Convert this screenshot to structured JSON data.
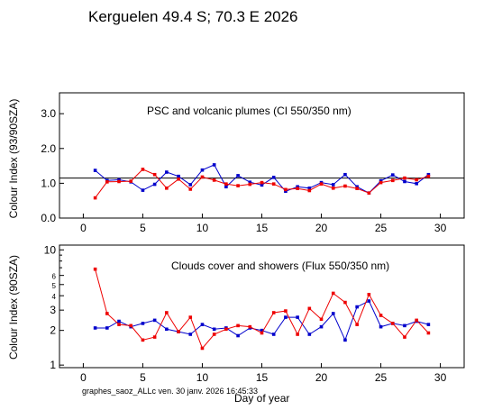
{
  "header": {
    "title": "Kerguelen  49.4 S; 70.3 E    2026"
  },
  "footer": {
    "stamp": "graphes_saoz_ALLc  ven. 30 janv. 2026 16:45:33",
    "xlabel": "Day of year"
  },
  "colors": {
    "series_a": "#0000cc",
    "series_b": "#ee0000",
    "axis": "#000000"
  },
  "chart_data": [
    {
      "type": "line",
      "title": "PSC and volcanic plumes (CI 550/350 nm)",
      "ylabel": "Colour Index (93/90SZA)",
      "xlabel": "",
      "xlim": [
        -2,
        32
      ],
      "ylim": [
        0,
        3.6
      ],
      "xticks": [
        "0",
        "5",
        "10",
        "15",
        "20",
        "25",
        "30"
      ],
      "yticks": [
        "0.0",
        "1.0",
        "2.0",
        "3.0"
      ],
      "reference_line": 1.15,
      "series": [
        {
          "color": "#0000cc",
          "x": [
            1,
            2,
            3,
            4,
            5,
            6,
            7,
            8,
            9,
            10,
            11,
            12,
            13,
            14,
            15,
            16,
            17,
            18,
            19,
            20,
            21,
            22,
            23,
            24,
            25,
            26,
            27,
            28,
            29
          ],
          "y": [
            1.37,
            1.08,
            1.1,
            1.04,
            0.8,
            0.97,
            1.32,
            1.2,
            0.96,
            1.38,
            1.53,
            0.9,
            1.22,
            1.03,
            0.95,
            1.17,
            0.77,
            0.9,
            0.86,
            1.02,
            0.96,
            1.25,
            0.9,
            0.72,
            1.07,
            1.24,
            1.05,
            0.99,
            1.25
          ]
        },
        {
          "color": "#ee0000",
          "x": [
            1,
            2,
            3,
            4,
            5,
            6,
            7,
            8,
            9,
            10,
            11,
            12,
            13,
            14,
            15,
            16,
            17,
            18,
            19,
            20,
            21,
            22,
            23,
            24,
            25,
            26,
            27,
            28,
            29
          ],
          "y": [
            0.58,
            1.04,
            1.05,
            1.06,
            1.4,
            1.25,
            0.86,
            1.12,
            0.83,
            1.18,
            1.09,
            0.98,
            0.93,
            0.97,
            1.02,
            0.98,
            0.82,
            0.85,
            0.79,
            0.98,
            0.86,
            0.92,
            0.85,
            0.72,
            1.02,
            1.08,
            1.15,
            1.1,
            1.2
          ]
        }
      ]
    },
    {
      "type": "line",
      "title": "Clouds cover and showers (Flux 550/350 nm)",
      "ylabel": "Colour Index (90SZA)",
      "xlabel": "Day of year",
      "xlim": [
        -2,
        32
      ],
      "ylim": [
        0.95,
        11
      ],
      "log_y": true,
      "xticks": [
        "0",
        "5",
        "10",
        "15",
        "20",
        "25",
        "30"
      ],
      "yticks": [
        "1",
        "2",
        "3",
        "4",
        "5",
        "6",
        "10"
      ],
      "series": [
        {
          "color": "#0000cc",
          "x": [
            1,
            2,
            3,
            4,
            5,
            6,
            7,
            8,
            9,
            10,
            11,
            12,
            13,
            14,
            15,
            16,
            17,
            18,
            19,
            20,
            21,
            22,
            23,
            24,
            25,
            26,
            27,
            28,
            29
          ],
          "y": [
            2.1,
            2.1,
            2.4,
            2.15,
            2.3,
            2.45,
            2.05,
            1.95,
            1.85,
            2.25,
            2.05,
            2.1,
            1.8,
            2.1,
            2.0,
            1.85,
            2.6,
            2.6,
            1.85,
            2.15,
            2.8,
            1.65,
            3.2,
            3.6,
            2.15,
            2.3,
            2.2,
            2.4,
            2.25
          ]
        },
        {
          "color": "#ee0000",
          "x": [
            1,
            2,
            3,
            4,
            5,
            6,
            7,
            8,
            9,
            10,
            11,
            12,
            13,
            14,
            15,
            16,
            17,
            18,
            19,
            20,
            21,
            22,
            23,
            24,
            25,
            26,
            27,
            28,
            29
          ],
          "y": [
            6.8,
            2.8,
            2.25,
            2.2,
            1.65,
            1.75,
            2.85,
            1.95,
            2.6,
            1.4,
            1.85,
            2.05,
            2.2,
            2.15,
            1.9,
            2.85,
            2.95,
            1.85,
            3.1,
            2.5,
            4.2,
            3.5,
            2.25,
            4.1,
            2.7,
            2.3,
            1.75,
            2.45,
            1.9
          ]
        }
      ]
    }
  ]
}
